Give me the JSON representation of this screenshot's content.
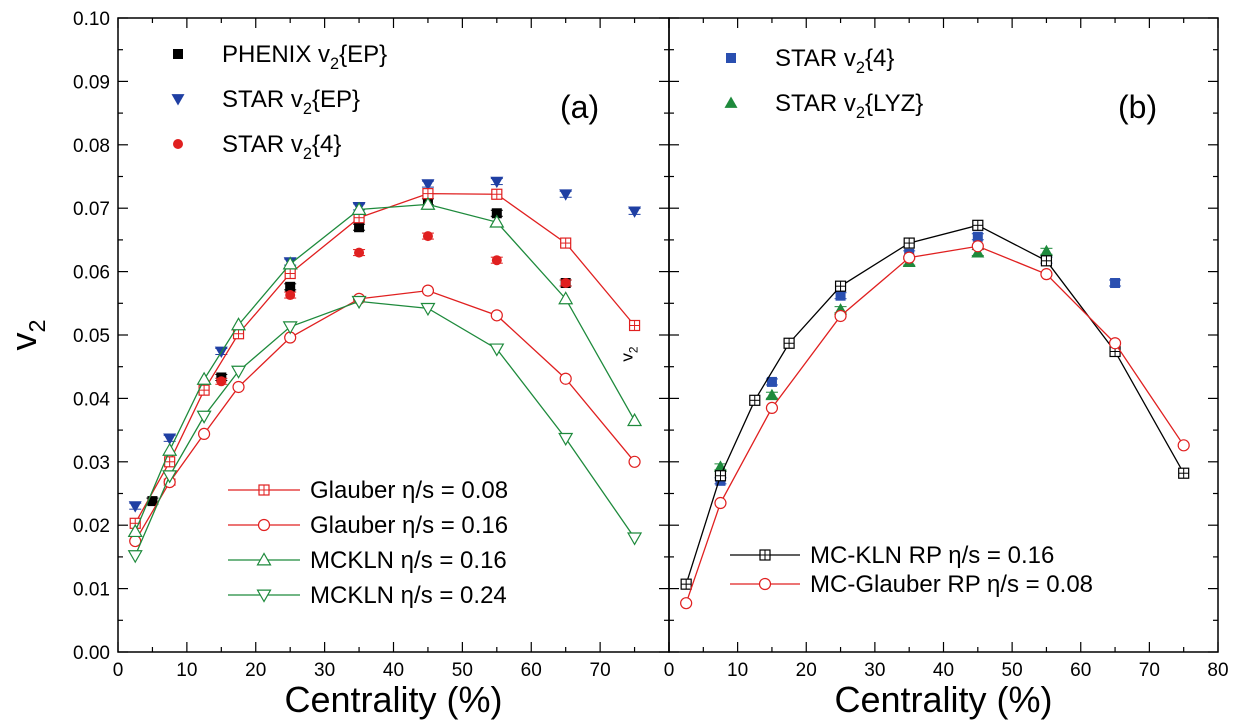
{
  "chart_data": [
    {
      "type": "scatter",
      "panel_label": "(a)",
      "xlabel": "Centrality (%)",
      "ylabel": "v",
      "ylabel_sub": "2",
      "xlim": [
        0,
        80
      ],
      "ylim": [
        0.0,
        0.1
      ],
      "x_ticks": [
        "0",
        "10",
        "20",
        "30",
        "40",
        "50",
        "60",
        "70"
      ],
      "y_ticks": [
        "0.00",
        "0.01",
        "0.02",
        "0.03",
        "0.04",
        "0.05",
        "0.06",
        "0.07",
        "0.08",
        "0.09",
        "0.10"
      ],
      "annotation": "v",
      "annotation_sub": "2",
      "grid": false,
      "legend_data_placement": "top-left",
      "legend_model_placement": "bottom-right",
      "series": [
        {
          "name_main": "PHENIX v",
          "name_sub": "2",
          "name_tail": "{EP}",
          "kind": "data",
          "marker": "square-filled",
          "color": "#000000",
          "x": [
            5,
            15,
            25,
            35,
            45,
            55,
            65
          ],
          "y": [
            0.0238,
            0.0433,
            0.0576,
            0.067,
            0.071,
            0.0692,
            0.0582
          ]
        },
        {
          "name_main": "STAR v",
          "name_sub": "2",
          "name_tail": "{EP}",
          "kind": "data",
          "marker": "triangle-down-filled",
          "color": "#1f3fa3",
          "x": [
            2.5,
            7.5,
            15,
            25,
            35,
            45,
            55,
            65,
            75
          ],
          "y": [
            0.023,
            0.0337,
            0.0474,
            0.0615,
            0.0702,
            0.0738,
            0.0742,
            0.0722,
            0.0695
          ]
        },
        {
          "name_main": "STAR v",
          "name_sub": "2",
          "name_tail": "{4}",
          "kind": "data",
          "marker": "circle-filled",
          "color": "#e02020",
          "x": [
            7.5,
            15,
            25,
            35,
            45,
            55,
            65
          ],
          "y": [
            0.0268,
            0.0427,
            0.0563,
            0.063,
            0.0656,
            0.0618,
            0.0582
          ]
        },
        {
          "name": "Glauber η/s = 0.08",
          "kind": "model",
          "marker": "square-open",
          "color": "#e02020",
          "x": [
            2.5,
            7.5,
            12.5,
            17.5,
            25,
            35,
            45,
            55,
            65,
            75
          ],
          "y": [
            0.0203,
            0.03,
            0.0413,
            0.0502,
            0.0597,
            0.0685,
            0.0723,
            0.0722,
            0.0645,
            0.0515
          ]
        },
        {
          "name": "Glauber η/s = 0.16",
          "kind": "model",
          "marker": "circle-open",
          "color": "#e02020",
          "x": [
            2.5,
            7.5,
            12.5,
            17.5,
            25,
            35,
            45,
            55,
            65,
            75
          ],
          "y": [
            0.0175,
            0.0268,
            0.0344,
            0.0418,
            0.0496,
            0.0557,
            0.057,
            0.0531,
            0.0431,
            0.03
          ]
        },
        {
          "name": "MCKLN η/s = 0.16",
          "kind": "model",
          "marker": "triangle-up-open",
          "color": "#1e8a3c",
          "x": [
            2.5,
            7.5,
            12.5,
            17.5,
            25,
            35,
            45,
            55,
            65,
            75
          ],
          "y": [
            0.019,
            0.0318,
            0.043,
            0.0516,
            0.0612,
            0.0698,
            0.0706,
            0.0678,
            0.0557,
            0.0365
          ]
        },
        {
          "name": "MCKLN η/s = 0.24",
          "kind": "model",
          "marker": "triangle-down-open",
          "color": "#1e8a3c",
          "x": [
            2.5,
            7.5,
            12.5,
            17.5,
            25,
            35,
            45,
            55,
            65,
            75
          ],
          "y": [
            0.0152,
            0.0278,
            0.0372,
            0.0443,
            0.0513,
            0.0553,
            0.0542,
            0.0478,
            0.0337,
            0.018
          ]
        }
      ]
    },
    {
      "type": "scatter",
      "panel_label": "(b)",
      "xlabel": "Centrality (%)",
      "xlim": [
        0,
        80
      ],
      "ylim": [
        0.0,
        0.1
      ],
      "x_ticks": [
        "0",
        "10",
        "20",
        "30",
        "40",
        "50",
        "60",
        "70",
        "80"
      ],
      "grid": false,
      "legend_data_placement": "top-left",
      "legend_model_placement": "bottom-right",
      "series": [
        {
          "name_main": "STAR v",
          "name_sub": "2",
          "name_tail": "{4}",
          "kind": "data",
          "marker": "square-filled",
          "color": "#2a4fb0",
          "x": [
            7.5,
            15,
            25,
            35,
            45,
            55,
            65
          ],
          "y": [
            0.027,
            0.0426,
            0.0562,
            0.0628,
            0.0655,
            0.0618,
            0.0582
          ]
        },
        {
          "name_main": "STAR v",
          "name_sub": "2",
          "name_tail": "{LYZ}",
          "kind": "data",
          "marker": "triangle-up-filled",
          "color": "#1e8a3c",
          "x": [
            7.5,
            15,
            25,
            35,
            45,
            55
          ],
          "y": [
            0.0292,
            0.0405,
            0.054,
            0.0615,
            0.063,
            0.0632
          ]
        },
        {
          "name": "MC-KLN RP η/s = 0.16",
          "kind": "model",
          "marker": "square-open",
          "color": "#000000",
          "x": [
            2.5,
            7.5,
            12.5,
            17.5,
            25,
            35,
            45,
            55,
            65,
            75
          ],
          "y": [
            0.0107,
            0.0278,
            0.0397,
            0.0487,
            0.0577,
            0.0645,
            0.0673,
            0.0617,
            0.0474,
            0.0282
          ]
        },
        {
          "name": "MC-Glauber RP η/s = 0.08",
          "kind": "model",
          "marker": "circle-open",
          "color": "#e02020",
          "x": [
            2.5,
            7.5,
            15,
            25,
            35,
            45,
            55,
            65,
            75
          ],
          "y": [
            0.0077,
            0.0235,
            0.0385,
            0.053,
            0.0622,
            0.064,
            0.0596,
            0.0487,
            0.0326
          ]
        }
      ]
    }
  ]
}
